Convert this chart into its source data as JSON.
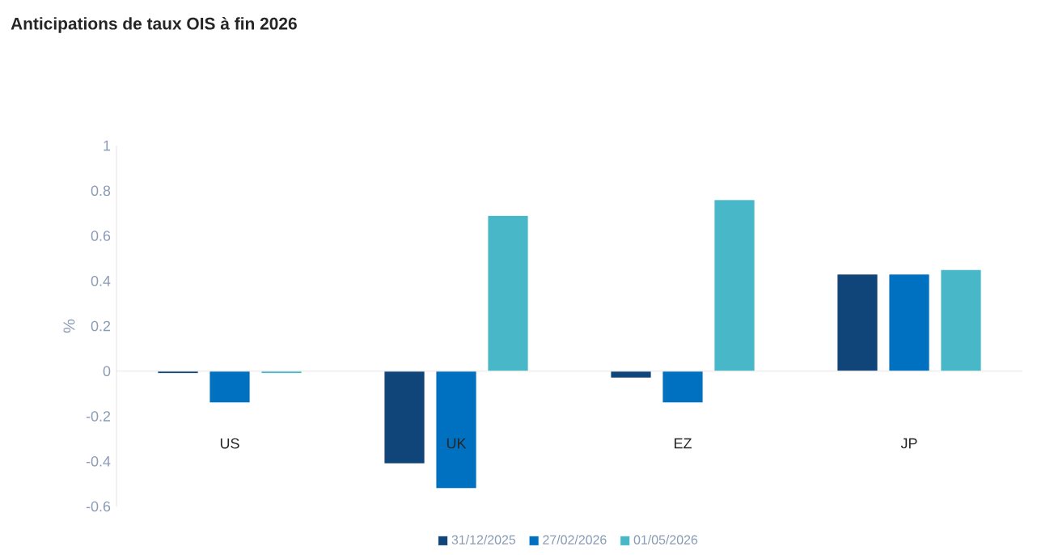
{
  "chart_data": {
    "type": "bar",
    "title": "Anticipations de taux OIS à fin 2026",
    "ylabel": "%",
    "categories": [
      "US",
      "UK",
      "EZ",
      "JP"
    ],
    "series": [
      {
        "name": "31/12/2025",
        "color": "#10457a",
        "values": [
          -0.01,
          -0.41,
          -0.03,
          0.43
        ]
      },
      {
        "name": "27/02/2026",
        "color": "#0071c1",
        "values": [
          -0.14,
          -0.52,
          -0.14,
          0.43
        ]
      },
      {
        "name": "01/05/2026",
        "color": "#48b8c9",
        "values": [
          -0.01,
          0.69,
          0.76,
          0.45
        ]
      }
    ],
    "ylim": [
      -0.6,
      1
    ],
    "yticks": [
      -0.6,
      -0.4,
      -0.2,
      0,
      0.2,
      0.4,
      0.6,
      0.8,
      1
    ],
    "legend": "bottom"
  }
}
